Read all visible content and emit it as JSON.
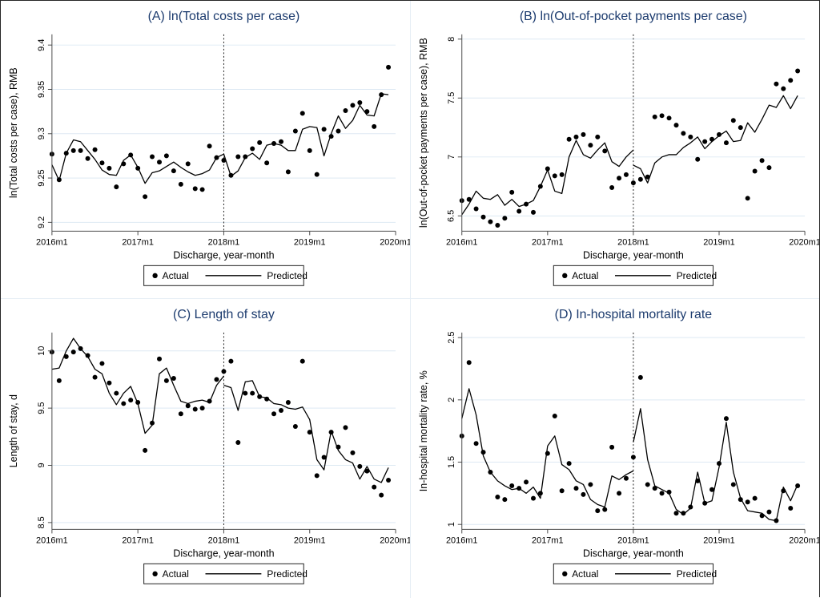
{
  "figure": {
    "xlabel": "Discharge, year-month",
    "x_tick_labels": [
      "2016m1",
      "2017m1",
      "2018m1",
      "2019m1",
      "2020m1"
    ],
    "legend": {
      "actual_label": "Actual",
      "predicted_label": "Predicted"
    },
    "colors": {
      "title": "#1c3b6e",
      "grid": "#dde9f3",
      "axis": "#4d4d4d",
      "data": "#000000",
      "background": "#ffffff",
      "panel_divider": "#e6eef5",
      "outer_border": "#262626"
    }
  },
  "chart_data": [
    {
      "panel": "A",
      "type": "line",
      "title": "(A) ln(Total costs per case)",
      "ylabel": "ln(Total costs per case), RMB",
      "xlabel": "Discharge, year-month",
      "legend": [
        "Actual",
        "Predicted"
      ],
      "x_start": "2016m1",
      "x_end": "2019m12",
      "x_tick_labels": [
        "2016m1",
        "2017m1",
        "2018m1",
        "2019m1",
        "2020m1"
      ],
      "x_tick_positions": [
        0,
        12,
        24,
        36,
        48
      ],
      "intervention_x": 24,
      "yticks": [
        9.2,
        9.25,
        9.3,
        9.35,
        9.4
      ],
      "ytick_labels": [
        "9.2",
        "9.25",
        "9.3",
        "9.35",
        "9.4"
      ],
      "ylim": [
        9.19,
        9.412
      ],
      "grid": true,
      "actual": [
        9.277,
        9.248,
        9.278,
        9.281,
        9.281,
        9.272,
        9.282,
        9.267,
        9.261,
        9.24,
        9.266,
        9.276,
        9.261,
        9.229,
        9.274,
        9.268,
        9.275,
        9.258,
        9.243,
        9.266,
        9.238,
        9.237,
        9.286,
        9.273,
        9.27,
        9.253,
        9.274,
        9.274,
        9.283,
        9.29,
        9.267,
        9.289,
        9.291,
        9.257,
        9.303,
        9.323,
        9.281,
        9.254,
        9.305,
        9.297,
        9.303,
        9.326,
        9.332,
        9.335,
        9.325,
        9.308,
        9.344,
        9.375
      ],
      "predicted_pre": [
        9.265,
        9.247,
        9.278,
        9.293,
        9.291,
        9.281,
        9.271,
        9.259,
        9.254,
        9.253,
        9.27,
        9.276,
        9.262,
        9.244,
        9.256,
        9.258,
        9.263,
        9.268,
        9.262,
        9.257,
        9.253,
        9.255,
        9.259,
        9.273,
        9.277
      ],
      "predicted_post": [
        9.277,
        9.252,
        9.258,
        9.273,
        9.278,
        9.271,
        9.287,
        9.289,
        9.287,
        9.281,
        9.281,
        9.305,
        9.308,
        9.307,
        9.275,
        9.3,
        9.32,
        9.306,
        9.315,
        9.332,
        9.321,
        9.32,
        9.345,
        9.344
      ]
    },
    {
      "panel": "B",
      "type": "line",
      "title": "(B) ln(Out-of-pocket payments per case)",
      "ylabel": "ln(Out-of-pocket payments per case), RMB",
      "xlabel": "Discharge, year-month",
      "legend": [
        "Actual",
        "Predicted"
      ],
      "x_start": "2016m1",
      "x_end": "2019m12",
      "x_tick_labels": [
        "2016m1",
        "2017m1",
        "2018m1",
        "2019m1",
        "2020m1"
      ],
      "x_tick_positions": [
        0,
        12,
        24,
        36,
        48
      ],
      "intervention_x": 24,
      "yticks": [
        6.5,
        7,
        7.5,
        8
      ],
      "ytick_labels": [
        "6.5",
        "7",
        "7.5",
        "8"
      ],
      "ylim": [
        6.37,
        8.04
      ],
      "grid": true,
      "actual": [
        6.63,
        6.64,
        6.56,
        6.49,
        6.45,
        6.42,
        6.48,
        6.7,
        6.54,
        6.6,
        6.53,
        6.75,
        6.9,
        6.84,
        6.85,
        7.15,
        7.17,
        7.19,
        7.1,
        7.17,
        7.05,
        6.74,
        6.82,
        6.85,
        6.78,
        6.81,
        6.83,
        7.34,
        7.35,
        7.33,
        7.27,
        7.2,
        7.17,
        6.98,
        7.13,
        7.15,
        7.19,
        7.12,
        7.31,
        7.25,
        6.65,
        6.88,
        6.97,
        6.91,
        7.62,
        7.58,
        7.65,
        7.73
      ],
      "predicted_pre": [
        6.51,
        6.6,
        6.71,
        6.65,
        6.64,
        6.68,
        6.59,
        6.64,
        6.58,
        6.6,
        6.63,
        6.75,
        6.89,
        6.71,
        6.69,
        7.0,
        7.14,
        7.02,
        6.99,
        7.06,
        7.12,
        6.96,
        6.92,
        7.0,
        7.06
      ],
      "predicted_post": [
        6.93,
        6.9,
        6.78,
        6.95,
        7.0,
        7.02,
        7.02,
        7.08,
        7.12,
        7.17,
        7.07,
        7.13,
        7.18,
        7.22,
        7.13,
        7.14,
        7.29,
        7.21,
        7.32,
        7.44,
        7.42,
        7.52,
        7.41,
        7.52
      ]
    },
    {
      "panel": "C",
      "type": "line",
      "title": "(C) Length of stay",
      "ylabel": "Length of stay, d",
      "xlabel": "Discharge, year-month",
      "legend": [
        "Actual",
        "Predicted"
      ],
      "x_start": "2016m1",
      "x_end": "2019m12",
      "x_tick_labels": [
        "2016m1",
        "2017m1",
        "2018m1",
        "2019m1",
        "2020m1"
      ],
      "x_tick_positions": [
        0,
        12,
        24,
        36,
        48
      ],
      "intervention_x": 24,
      "yticks": [
        8.5,
        9,
        9.5,
        10
      ],
      "ytick_labels": [
        "8.5",
        "9",
        "9.5",
        "10"
      ],
      "ylim": [
        8.44,
        10.16
      ],
      "grid": true,
      "actual": [
        9.99,
        9.74,
        9.95,
        9.99,
        10.02,
        9.96,
        9.77,
        9.89,
        9.72,
        9.63,
        9.54,
        9.57,
        9.55,
        9.13,
        9.37,
        9.93,
        9.74,
        9.76,
        9.45,
        9.52,
        9.49,
        9.5,
        9.56,
        9.75,
        9.82,
        9.91,
        9.2,
        9.63,
        9.63,
        9.6,
        9.58,
        9.45,
        9.48,
        9.55,
        9.34,
        9.91,
        9.29,
        8.91,
        9.07,
        9.29,
        9.16,
        9.33,
        9.11,
        8.99,
        8.95,
        8.81,
        8.74,
        8.87
      ],
      "predicted_pre": [
        9.84,
        9.85,
        10.0,
        10.11,
        10.02,
        9.95,
        9.84,
        9.8,
        9.63,
        9.53,
        9.63,
        9.69,
        9.54,
        9.28,
        9.35,
        9.8,
        9.85,
        9.7,
        9.56,
        9.54,
        9.56,
        9.57,
        9.55,
        9.7,
        9.78
      ],
      "predicted_post": [
        9.7,
        9.68,
        9.48,
        9.73,
        9.74,
        9.6,
        9.59,
        9.54,
        9.53,
        9.5,
        9.49,
        9.51,
        9.4,
        9.05,
        8.96,
        9.3,
        9.13,
        9.05,
        9.02,
        8.88,
        8.99,
        8.88,
        8.85,
        8.98
      ]
    },
    {
      "panel": "D",
      "type": "line",
      "title": "(D) In-hospital mortality rate",
      "ylabel": "In-hospital mortality rate, %",
      "xlabel": "Discharge, year-month",
      "legend": [
        "Actual",
        "Predicted"
      ],
      "x_start": "2016m1",
      "x_end": "2019m12",
      "x_tick_labels": [
        "2016m1",
        "2017m1",
        "2018m1",
        "2019m1",
        "2020m1"
      ],
      "x_tick_positions": [
        0,
        12,
        24,
        36,
        48
      ],
      "intervention_x": 24,
      "yticks": [
        1,
        1.5,
        2,
        2.5
      ],
      "ytick_labels": [
        "1",
        "1.5",
        "2",
        "2.5"
      ],
      "ylim": [
        0.96,
        2.54
      ],
      "grid": true,
      "actual": [
        1.71,
        2.3,
        1.65,
        1.58,
        1.42,
        1.22,
        1.2,
        1.31,
        1.29,
        1.34,
        1.21,
        1.25,
        1.57,
        1.87,
        1.27,
        1.49,
        1.29,
        1.24,
        1.32,
        1.11,
        1.12,
        1.62,
        1.25,
        1.37,
        1.54,
        2.18,
        1.32,
        1.29,
        1.25,
        1.26,
        1.09,
        1.09,
        1.14,
        1.35,
        1.17,
        1.28,
        1.49,
        1.85,
        1.32,
        1.2,
        1.18,
        1.21,
        1.07,
        1.1,
        1.03,
        1.27,
        1.13,
        1.31
      ],
      "predicted_pre": [
        1.85,
        2.09,
        1.88,
        1.55,
        1.42,
        1.35,
        1.31,
        1.28,
        1.29,
        1.25,
        1.3,
        1.21,
        1.63,
        1.71,
        1.48,
        1.44,
        1.35,
        1.32,
        1.2,
        1.16,
        1.14,
        1.39,
        1.36,
        1.4,
        1.43
      ],
      "predicted_post": [
        1.66,
        1.93,
        1.52,
        1.31,
        1.28,
        1.25,
        1.12,
        1.08,
        1.13,
        1.42,
        1.17,
        1.19,
        1.46,
        1.82,
        1.42,
        1.21,
        1.11,
        1.1,
        1.09,
        1.04,
        1.03,
        1.3,
        1.19,
        1.32
      ]
    }
  ]
}
